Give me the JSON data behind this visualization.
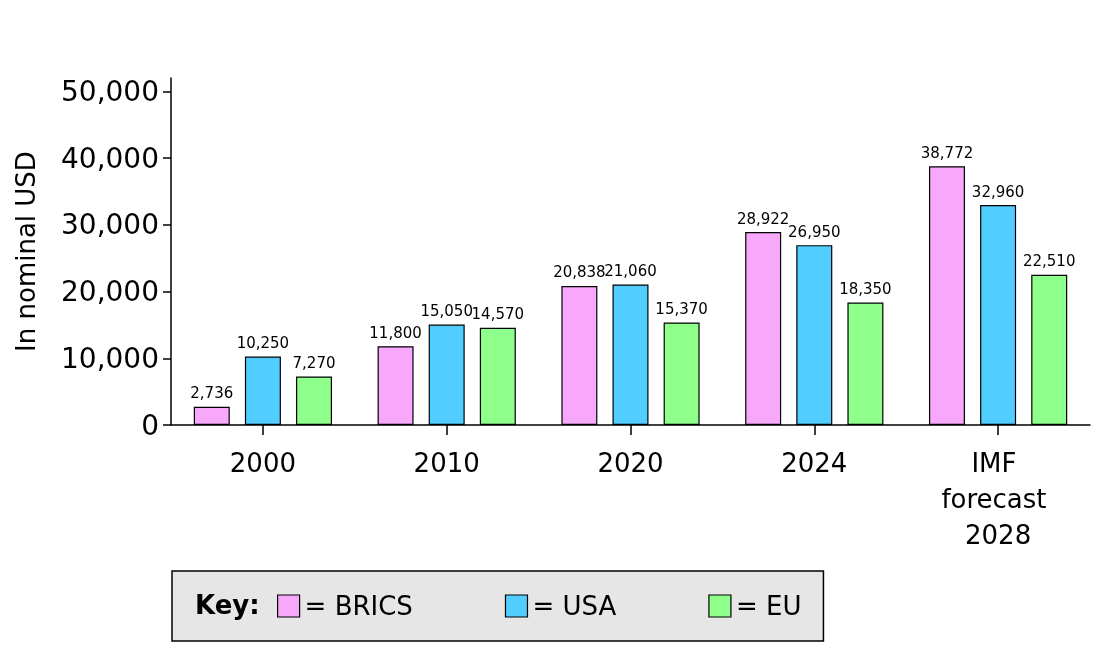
{
  "chart_data": {
    "type": "bar",
    "categories": [
      "2000",
      "2010",
      "2020",
      "2024",
      "IMF forecast 2028"
    ],
    "series": [
      {
        "name": "= BRICS",
        "color": "#f7a8fa",
        "values": [
          2736,
          11800,
          20838,
          28922,
          38772
        ],
        "value_labels": [
          "2,736",
          "11,800",
          "20,838",
          "28,922",
          "38,772"
        ]
      },
      {
        "name": "= USA",
        "color": "#52cdff",
        "values": [
          10250,
          15050,
          21060,
          26950,
          32960
        ],
        "value_labels": [
          "10,250",
          "15,050",
          "21,060",
          "26,950",
          "32,960"
        ]
      },
      {
        "name": "= EU",
        "color": "#8eff8a",
        "values": [
          7270,
          14570,
          15370,
          18350,
          22510
        ],
        "value_labels": [
          "7,270",
          "14,570",
          "15,370",
          "18,350",
          "22,510"
        ]
      }
    ],
    "ylabel": "In nominal USD",
    "legend_title": "Key:",
    "legend": "bottom",
    "ylim": [
      0,
      52000
    ],
    "yticks": [
      {
        "value": 0,
        "label": "0"
      },
      {
        "value": 10000,
        "label": "10,000"
      },
      {
        "value": 20000,
        "label": "20,000"
      },
      {
        "value": 30000,
        "label": "30,000"
      },
      {
        "value": 40000,
        "label": "40,000"
      },
      {
        "value": 50000,
        "label": "50,000"
      }
    ]
  }
}
